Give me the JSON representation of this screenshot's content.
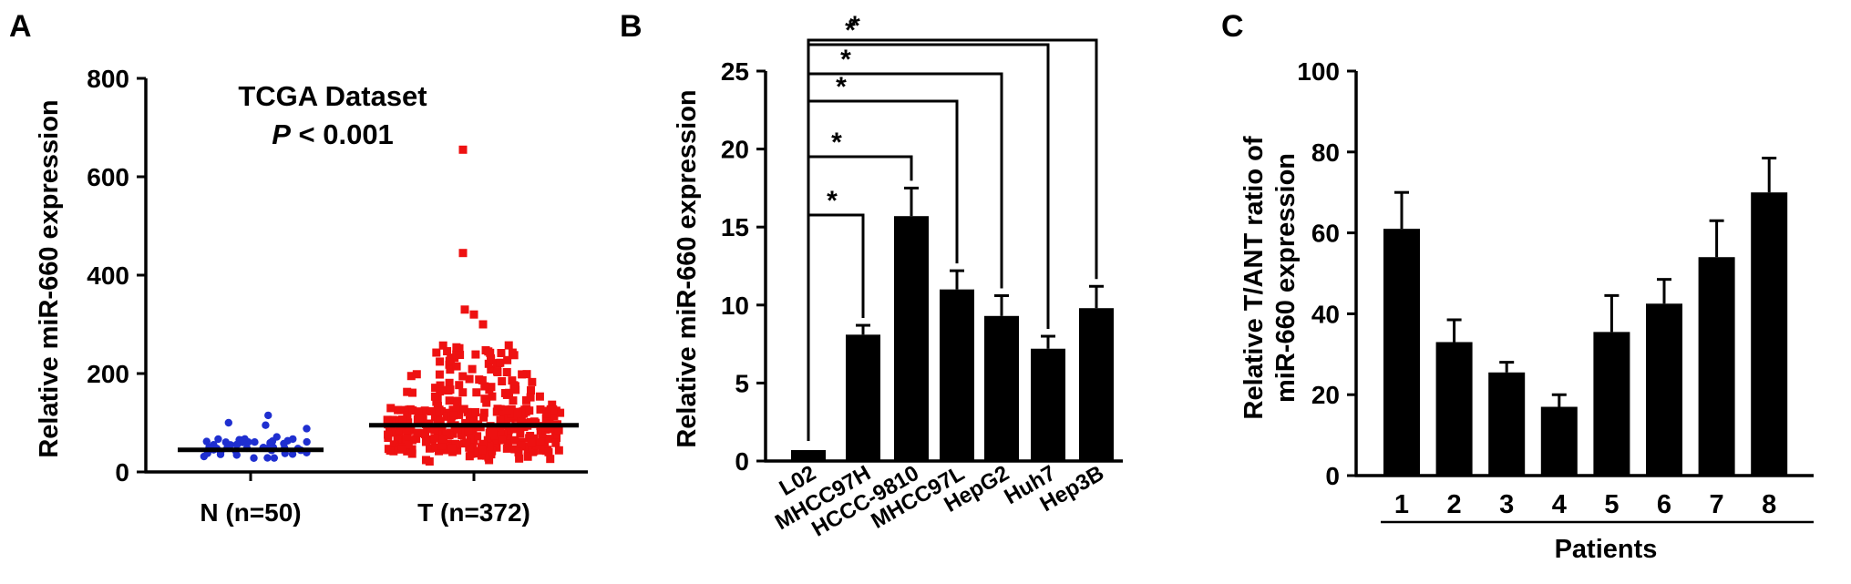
{
  "chart_data": [
    {
      "panel": "A",
      "type": "scatter",
      "title": "TCGA Dataset",
      "annotation_prefix": "P",
      "annotation_rest": " < 0.001",
      "ylabel": "Relative miR-660 expression",
      "ylim": [
        0,
        800
      ],
      "yticks": [
        0,
        200,
        400,
        600,
        800
      ],
      "categories": [
        "N (n=50)",
        "T (n=372)"
      ],
      "colors": [
        "#1f2fd0",
        "#ee1111"
      ],
      "medians": [
        45,
        95
      ],
      "outliers_T": [
        655,
        445,
        330,
        320,
        300
      ]
    },
    {
      "panel": "B",
      "type": "bar",
      "ylabel": "Relative miR-660 expression",
      "ylim": [
        0,
        25
      ],
      "yticks": [
        0,
        5,
        10,
        15,
        20,
        25
      ],
      "categories": [
        "L02",
        "MHCC97H",
        "HCCC-9810",
        "MHCC97L",
        "HepG2",
        "Huh7",
        "Hep3B"
      ],
      "values": [
        0.7,
        8.1,
        15.7,
        11.0,
        9.3,
        7.2,
        9.8
      ],
      "errors": [
        0,
        0.6,
        1.8,
        1.2,
        1.3,
        0.8,
        1.4
      ],
      "significance_label": "*"
    },
    {
      "panel": "C",
      "type": "bar",
      "ylabel_line1": "Relative T/ANT ratio of",
      "ylabel_line2": "miR-660 expression",
      "xlabel": "Patients",
      "ylim": [
        0,
        100
      ],
      "yticks": [
        0,
        20,
        40,
        60,
        80,
        100
      ],
      "categories": [
        "1",
        "2",
        "3",
        "4",
        "5",
        "6",
        "7",
        "8"
      ],
      "values": [
        61,
        33,
        25.5,
        17,
        35.5,
        42.5,
        54,
        70
      ],
      "errors": [
        9,
        5.5,
        2.5,
        3,
        9,
        6,
        9,
        8.5
      ]
    }
  ]
}
